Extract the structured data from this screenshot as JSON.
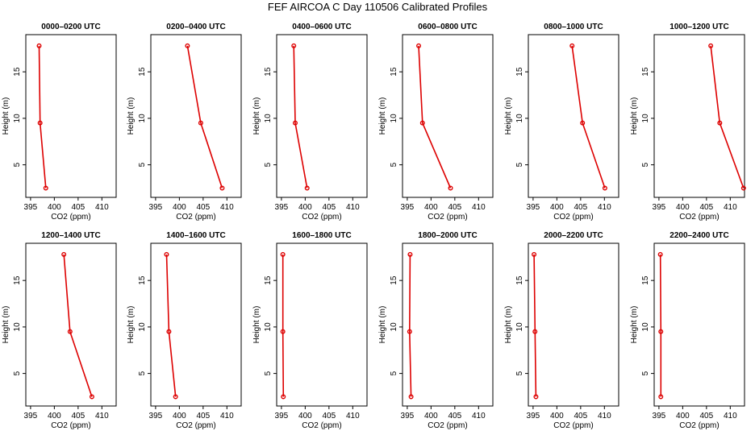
{
  "figure": {
    "title": "FEF AIRCOA C  Day 110506  Calibrated Profiles"
  },
  "style": {
    "line_color": "#dd0000",
    "axis_color": "#000000"
  },
  "chart_data": {
    "type": "line",
    "title": "FEF AIRCOA C  Day 110506  Calibrated Profiles",
    "xlabel": "CO2 (ppm)",
    "ylabel": "Height (m)",
    "xlim": [
      394,
      413
    ],
    "ylim": [
      1.5,
      19
    ],
    "xticks": [
      395,
      400,
      405,
      410
    ],
    "yticks": [
      5,
      10,
      15
    ],
    "heights": [
      17.8,
      9.5,
      2.5
    ],
    "panels": [
      {
        "title": "0000–0200 UTC",
        "co2": [
          396.8,
          397.0,
          398.2
        ]
      },
      {
        "title": "0200–0400 UTC",
        "co2": [
          401.7,
          404.5,
          409.0
        ]
      },
      {
        "title": "0400–0600 UTC",
        "co2": [
          397.6,
          397.9,
          400.4
        ]
      },
      {
        "title": "0600–0800 UTC",
        "co2": [
          397.4,
          398.2,
          404.1
        ]
      },
      {
        "title": "0800–1000 UTC",
        "co2": [
          403.2,
          405.4,
          410.1
        ]
      },
      {
        "title": "1000–1200 UTC",
        "co2": [
          405.9,
          407.8,
          412.8
        ]
      },
      {
        "title": "1200–1400 UTC",
        "co2": [
          402.0,
          403.3,
          407.9
        ]
      },
      {
        "title": "1400–1600 UTC",
        "co2": [
          397.3,
          397.8,
          399.2
        ]
      },
      {
        "title": "1600–1800 UTC",
        "co2": [
          395.3,
          395.3,
          395.4
        ]
      },
      {
        "title": "1800–2000 UTC",
        "co2": [
          395.6,
          395.5,
          395.8
        ]
      },
      {
        "title": "2000–2200 UTC",
        "co2": [
          395.2,
          395.4,
          395.6
        ]
      },
      {
        "title": "2200–2400 UTC",
        "co2": [
          395.3,
          395.4,
          395.4
        ]
      }
    ]
  }
}
